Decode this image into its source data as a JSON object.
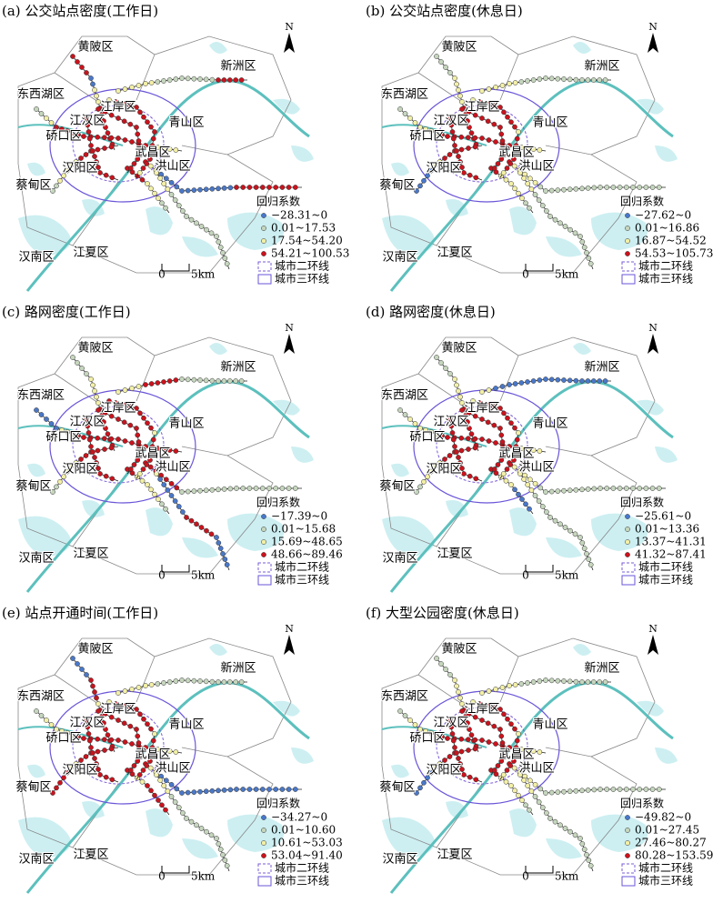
{
  "north": "N",
  "scale": {
    "zero": "0",
    "label": "5km"
  },
  "districts": [
    "黄陂区",
    "新洲区",
    "东西湖区",
    "江岸区",
    "江汉区",
    "硚口区",
    "青山区",
    "武昌区",
    "汉阳区",
    "洪山区",
    "蔡甸区",
    "江夏区",
    "汉南区"
  ],
  "legend_title": "回归系数",
  "ring2": "城市二环线",
  "ring3": "城市三环线",
  "class_colors": [
    "#4a78c8",
    "#c5d6bd",
    "#f3f0a6",
    "#c8141e"
  ],
  "panels": [
    {
      "title": "(a) 公交站点密度(工作日)",
      "classes": [
        "−28.31~0",
        "0.01~17.53",
        "17.54~54.20",
        "54.21~100.53"
      ]
    },
    {
      "title": "(b) 公交站点密度(休息日)",
      "classes": [
        "−27.62~0",
        "0.01~16.86",
        "16.87~54.52",
        "54.53~105.73"
      ]
    },
    {
      "title": "(c) 路网密度(工作日)",
      "classes": [
        "−17.39~0",
        "0.01~15.68",
        "15.69~48.65",
        "48.66~89.46"
      ]
    },
    {
      "title": "(d) 路网密度(休息日)",
      "classes": [
        "−25.61~0",
        "0.01~13.36",
        "13.37~41.31",
        "41.32~87.41"
      ]
    },
    {
      "title": "(e) 站点开通时间(工作日)",
      "classes": [
        "−34.27~0",
        "0.01~10.60",
        "10.61~53.03",
        "53.04~91.40"
      ]
    },
    {
      "title": "(f) 大型公园密度(休息日)",
      "classes": [
        "−49.82~0",
        "0.01~27.45",
        "27.46~80.27",
        "80.28~153.59"
      ]
    }
  ]
}
